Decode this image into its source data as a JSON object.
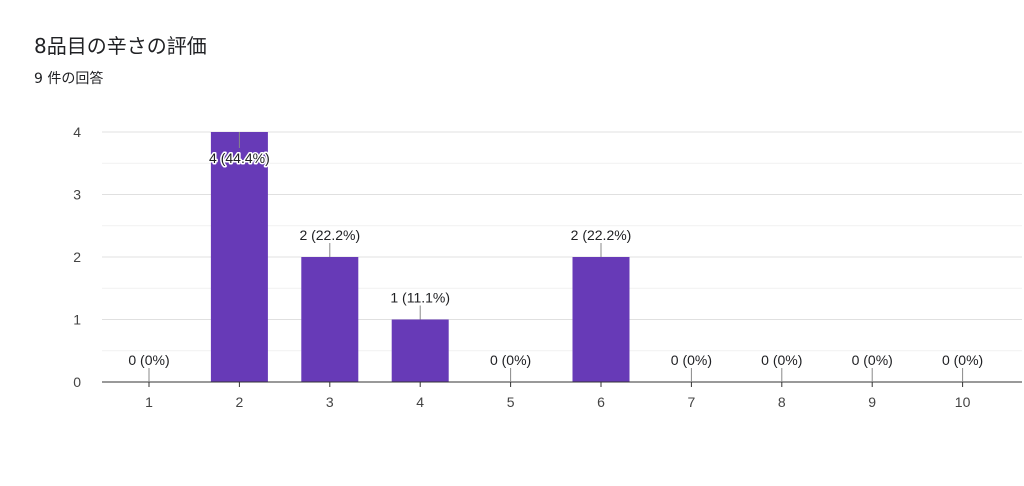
{
  "title": "8品目の辛さの評価",
  "subtitle": "9 件の回答",
  "colors": {
    "bar": "#673ab7",
    "grid": "#e9e9e9",
    "axis": "#333333",
    "leader": "#888888"
  },
  "chart_data": {
    "type": "bar",
    "title": "8品目の辛さの評価",
    "categories": [
      "1",
      "2",
      "3",
      "4",
      "5",
      "6",
      "7",
      "8",
      "9",
      "10"
    ],
    "values": [
      0,
      4,
      2,
      1,
      0,
      2,
      0,
      0,
      0,
      0
    ],
    "data_labels": [
      "0 (0%)",
      "4 (44.4%)",
      "2 (22.2%)",
      "1 (11.1%)",
      "0 (0%)",
      "2 (22.2%)",
      "0 (0%)",
      "0 (0%)",
      "0 (0%)",
      "0 (0%)"
    ],
    "y_ticks": [
      0,
      1,
      2,
      3,
      4
    ],
    "ylim": [
      0,
      4
    ],
    "grid": true,
    "legend": "none",
    "xlabel": "",
    "ylabel": ""
  }
}
